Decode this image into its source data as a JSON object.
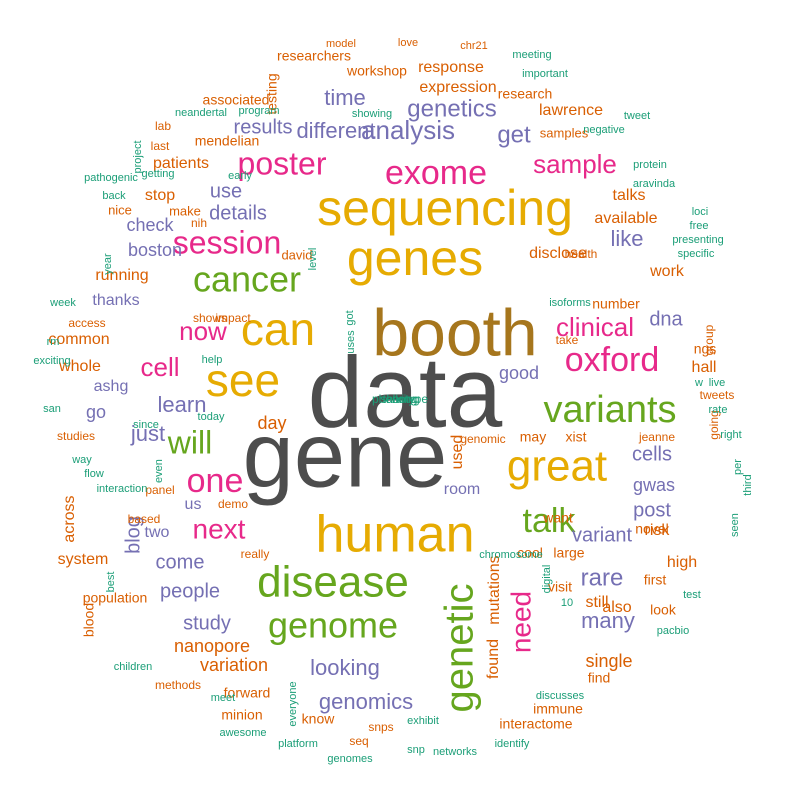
{
  "colors": {
    "gray": "#4d4d4d",
    "brown": "#a6761d",
    "gold": "#e6ab02",
    "green": "#66a61e",
    "magenta": "#e7298a",
    "purple": "#7570b3",
    "orange": "#d95f02",
    "teal": "#1b9e77"
  },
  "words": [
    {
      "text": "data",
      "color": "gray"
    },
    {
      "text": "gene",
      "color": "gray"
    },
    {
      "text": "booth",
      "color": "brown"
    },
    {
      "text": "sequencing",
      "color": "gold"
    },
    {
      "text": "genes",
      "color": "gold"
    },
    {
      "text": "human",
      "color": "gold"
    },
    {
      "text": "see",
      "color": "gold"
    },
    {
      "text": "can",
      "color": "gold"
    },
    {
      "text": "great",
      "color": "gold"
    },
    {
      "text": "disease",
      "color": "green"
    },
    {
      "text": "variants",
      "color": "green"
    },
    {
      "text": "genome",
      "color": "green"
    },
    {
      "text": "cancer",
      "color": "green"
    },
    {
      "text": "genetic",
      "color": "green"
    },
    {
      "text": "will",
      "color": "green"
    },
    {
      "text": "talk",
      "color": "green"
    },
    {
      "text": "exome",
      "color": "magenta"
    },
    {
      "text": "oxford",
      "color": "magenta"
    },
    {
      "text": "poster",
      "color": "magenta"
    },
    {
      "text": "session",
      "color": "magenta"
    },
    {
      "text": "one",
      "color": "magenta"
    },
    {
      "text": "next",
      "color": "magenta"
    },
    {
      "text": "need",
      "color": "magenta"
    },
    {
      "text": "clinical",
      "color": "magenta"
    },
    {
      "text": "cell",
      "color": "magenta"
    },
    {
      "text": "now",
      "color": "magenta"
    },
    {
      "text": "sample",
      "color": "magenta"
    },
    {
      "text": "analysis",
      "color": "purple"
    },
    {
      "text": "get",
      "color": "purple"
    },
    {
      "text": "genetics",
      "color": "purple"
    },
    {
      "text": "different",
      "color": "purple"
    },
    {
      "text": "time",
      "color": "purple"
    },
    {
      "text": "results",
      "color": "purple"
    },
    {
      "text": "details",
      "color": "purple"
    },
    {
      "text": "use",
      "color": "purple"
    },
    {
      "text": "learn",
      "color": "purple"
    },
    {
      "text": "just",
      "color": "purple"
    },
    {
      "text": "rare",
      "color": "purple"
    },
    {
      "text": "looking",
      "color": "purple"
    },
    {
      "text": "many",
      "color": "purple"
    },
    {
      "text": "genomics",
      "color": "purple"
    },
    {
      "text": "variant",
      "color": "purple"
    },
    {
      "text": "post",
      "color": "purple"
    },
    {
      "text": "cells",
      "color": "purple"
    },
    {
      "text": "gwas",
      "color": "purple"
    },
    {
      "text": "dna",
      "color": "purple"
    },
    {
      "text": "good",
      "color": "purple"
    },
    {
      "text": "like",
      "color": "purple"
    },
    {
      "text": "come",
      "color": "purple"
    },
    {
      "text": "blog",
      "color": "purple"
    },
    {
      "text": "people",
      "color": "purple"
    },
    {
      "text": "study",
      "color": "purple"
    },
    {
      "text": "check",
      "color": "purple"
    },
    {
      "text": "boston",
      "color": "purple"
    },
    {
      "text": "thanks",
      "color": "purple"
    },
    {
      "text": "ashg",
      "color": "purple"
    },
    {
      "text": "room",
      "color": "purple"
    },
    {
      "text": "us",
      "color": "purple"
    },
    {
      "text": "two",
      "color": "purple"
    },
    {
      "text": "go",
      "color": "purple"
    },
    {
      "text": "single",
      "color": "orange"
    },
    {
      "text": "variation",
      "color": "orange"
    },
    {
      "text": "nanopore",
      "color": "orange"
    },
    {
      "text": "found",
      "color": "orange"
    },
    {
      "text": "mutations",
      "color": "orange"
    },
    {
      "text": "still",
      "color": "orange"
    },
    {
      "text": "also",
      "color": "orange"
    },
    {
      "text": "find",
      "color": "orange"
    },
    {
      "text": "response",
      "color": "orange"
    },
    {
      "text": "expression",
      "color": "orange"
    },
    {
      "text": "research",
      "color": "orange"
    },
    {
      "text": "lawrence",
      "color": "orange"
    },
    {
      "text": "samples",
      "color": "orange"
    },
    {
      "text": "mendelian",
      "color": "orange"
    },
    {
      "text": "associated",
      "color": "orange"
    },
    {
      "text": "workshop",
      "color": "orange"
    },
    {
      "text": "researchers",
      "color": "orange"
    },
    {
      "text": "testing",
      "color": "orange"
    },
    {
      "text": "patients",
      "color": "orange"
    },
    {
      "text": "stop",
      "color": "orange"
    },
    {
      "text": "make",
      "color": "orange"
    },
    {
      "text": "nice",
      "color": "orange"
    },
    {
      "text": "talks",
      "color": "orange"
    },
    {
      "text": "available",
      "color": "orange"
    },
    {
      "text": "disclose",
      "color": "orange"
    },
    {
      "text": "work",
      "color": "orange"
    },
    {
      "text": "david",
      "color": "orange"
    },
    {
      "text": "running",
      "color": "orange"
    },
    {
      "text": "common",
      "color": "orange"
    },
    {
      "text": "whole",
      "color": "orange"
    },
    {
      "text": "hall",
      "color": "orange"
    },
    {
      "text": "ngs",
      "color": "orange"
    },
    {
      "text": "day",
      "color": "orange"
    },
    {
      "text": "used",
      "color": "orange"
    },
    {
      "text": "may",
      "color": "orange"
    },
    {
      "text": "xist",
      "color": "orange"
    },
    {
      "text": "risk",
      "color": "orange"
    },
    {
      "text": "want",
      "color": "orange"
    },
    {
      "text": "novel",
      "color": "orange"
    },
    {
      "text": "high",
      "color": "orange"
    },
    {
      "text": "cool",
      "color": "orange"
    },
    {
      "text": "large",
      "color": "orange"
    },
    {
      "text": "visit",
      "color": "orange"
    },
    {
      "text": "first",
      "color": "orange"
    },
    {
      "text": "look",
      "color": "orange"
    },
    {
      "text": "across",
      "color": "orange"
    },
    {
      "text": "system",
      "color": "orange"
    },
    {
      "text": "blood",
      "color": "orange"
    },
    {
      "text": "population",
      "color": "orange"
    },
    {
      "text": "forward",
      "color": "orange"
    },
    {
      "text": "minion",
      "color": "orange"
    },
    {
      "text": "know",
      "color": "orange"
    },
    {
      "text": "snps",
      "color": "orange"
    },
    {
      "text": "immune",
      "color": "orange"
    },
    {
      "text": "interactome",
      "color": "orange"
    },
    {
      "text": "seq",
      "color": "orange"
    },
    {
      "text": "methods",
      "color": "orange"
    },
    {
      "text": "number",
      "color": "orange"
    },
    {
      "text": "jeanne",
      "color": "orange"
    },
    {
      "text": "genomic",
      "color": "orange"
    },
    {
      "text": "access",
      "color": "orange"
    },
    {
      "text": "studies",
      "color": "orange"
    },
    {
      "text": "tweets",
      "color": "orange"
    },
    {
      "text": "based",
      "color": "orange"
    },
    {
      "text": "panel",
      "color": "orange"
    },
    {
      "text": "really",
      "color": "orange"
    },
    {
      "text": "take",
      "color": "orange"
    },
    {
      "text": "health",
      "color": "orange"
    },
    {
      "text": "demo",
      "color": "orange"
    },
    {
      "text": "nih",
      "color": "orange"
    },
    {
      "text": "last",
      "color": "orange"
    },
    {
      "text": "lab",
      "color": "orange"
    },
    {
      "text": "group",
      "color": "orange"
    },
    {
      "text": "going",
      "color": "orange"
    },
    {
      "text": "shows",
      "color": "orange"
    },
    {
      "text": "impact",
      "color": "orange"
    },
    {
      "text": "model",
      "color": "orange"
    },
    {
      "text": "love",
      "color": "orange"
    },
    {
      "text": "chr21",
      "color": "orange"
    },
    {
      "text": "meeting",
      "color": "teal"
    },
    {
      "text": "important",
      "color": "teal"
    },
    {
      "text": "program",
      "color": "teal"
    },
    {
      "text": "showing",
      "color": "teal"
    },
    {
      "text": "neandertal",
      "color": "teal"
    },
    {
      "text": "tweet",
      "color": "teal"
    },
    {
      "text": "negative",
      "color": "teal"
    },
    {
      "text": "project",
      "color": "teal"
    },
    {
      "text": "getting",
      "color": "teal"
    },
    {
      "text": "pathogenic",
      "color": "teal"
    },
    {
      "text": "back",
      "color": "teal"
    },
    {
      "text": "early",
      "color": "teal"
    },
    {
      "text": "protein",
      "color": "teal"
    },
    {
      "text": "aravinda",
      "color": "teal"
    },
    {
      "text": "loci",
      "color": "teal"
    },
    {
      "text": "free",
      "color": "teal"
    },
    {
      "text": "presenting",
      "color": "teal"
    },
    {
      "text": "specific",
      "color": "teal"
    },
    {
      "text": "year",
      "color": "teal"
    },
    {
      "text": "level",
      "color": "teal"
    },
    {
      "text": "week",
      "color": "teal"
    },
    {
      "text": "isoforms",
      "color": "teal"
    },
    {
      "text": "rm",
      "color": "teal"
    },
    {
      "text": "exciting",
      "color": "teal"
    },
    {
      "text": "got",
      "color": "teal"
    },
    {
      "text": "uses",
      "color": "teal"
    },
    {
      "text": "help",
      "color": "teal"
    },
    {
      "text": "w",
      "color": "teal"
    },
    {
      "text": "live",
      "color": "teal"
    },
    {
      "text": "rate",
      "color": "teal"
    },
    {
      "text": "san",
      "color": "teal"
    },
    {
      "text": "since",
      "color": "teal"
    },
    {
      "text": "today",
      "color": "teal"
    },
    {
      "text": "right",
      "color": "teal"
    },
    {
      "text": "way",
      "color": "teal"
    },
    {
      "text": "flow",
      "color": "teal"
    },
    {
      "text": "even",
      "color": "teal"
    },
    {
      "text": "per",
      "color": "teal"
    },
    {
      "text": "third",
      "color": "teal"
    },
    {
      "text": "seen",
      "color": "teal"
    },
    {
      "text": "interaction",
      "color": "teal"
    },
    {
      "text": "chromosome",
      "color": "teal"
    },
    {
      "text": "digital",
      "color": "teal"
    },
    {
      "text": "test",
      "color": "teal"
    },
    {
      "text": "best",
      "color": "teal"
    },
    {
      "text": "10",
      "color": "teal"
    },
    {
      "text": "pacbio",
      "color": "teal"
    },
    {
      "text": "children",
      "color": "teal"
    },
    {
      "text": "meet",
      "color": "teal"
    },
    {
      "text": "everyone",
      "color": "teal"
    },
    {
      "text": "awesome",
      "color": "teal"
    },
    {
      "text": "platform",
      "color": "teal"
    },
    {
      "text": "exhibit",
      "color": "teal"
    },
    {
      "text": "discusses",
      "color": "teal"
    },
    {
      "text": "identify",
      "color": "teal"
    },
    {
      "text": "snp",
      "color": "teal"
    },
    {
      "text": "networks",
      "color": "teal"
    },
    {
      "text": "genomes",
      "color": "teal"
    },
    {
      "text": "talking",
      "color": "teal"
    },
    {
      "text": "sharing",
      "color": "teal"
    },
    {
      "text": "phenotype",
      "color": "teal"
    }
  ]
}
